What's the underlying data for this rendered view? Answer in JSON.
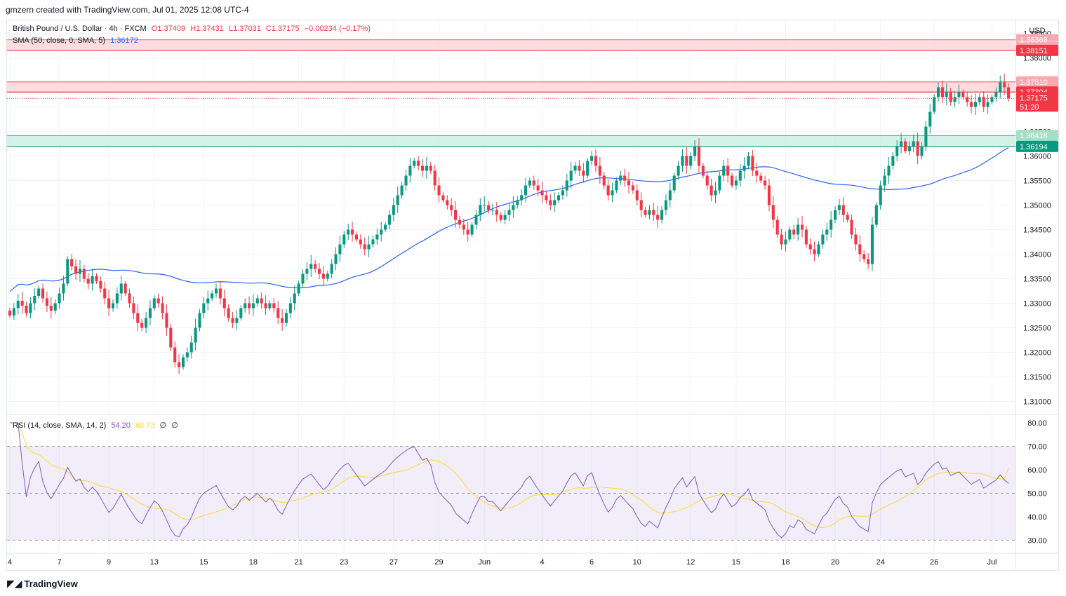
{
  "header": {
    "attribution": "gmzern created with TradingView.com, Jul 01, 2025 12:08 UTC-4",
    "currency": "USD"
  },
  "legend": {
    "symbol": "British Pound / U.S. Dollar · 4h · FXCM",
    "open": "O1.37409",
    "high": "H1.37431",
    "low": "L1.37031",
    "close": "C1.37175",
    "change": "−0.00234 (−0.17%)",
    "sma_label": "SMA (50, close, 0, SMA, 5)",
    "sma_value": "1.36172",
    "rsi_label": "RSI (14, close, SMA, 14, 2)",
    "rsi_value": "54.20",
    "rsi_ma_value": "60.73",
    "rsi_extra1": "∅",
    "rsi_extra2": "∅"
  },
  "footer": {
    "brand": "TradingView"
  },
  "colors": {
    "up": "#089981",
    "down": "#f23645",
    "sma": "#2962ff",
    "rsi": "#7e57c2",
    "rsi_ma": "#fdd835",
    "resistance_fill": "#fbd3d6",
    "support_fill": "#c9efe1"
  },
  "chart_data": [
    {
      "type": "candlestick",
      "title": "British Pound / U.S. Dollar · 4h · FXCM",
      "ylim": [
        1.3075,
        1.3875
      ],
      "y_ticks": [
        "1.31000",
        "1.31500",
        "1.32000",
        "1.32500",
        "1.33000",
        "1.33500",
        "1.34000",
        "1.34500",
        "1.35000",
        "1.35500",
        "1.36000",
        "1.36500",
        "1.37000",
        "1.37500",
        "1.38000",
        "1.38500"
      ],
      "x_ticks": [
        "4",
        "7",
        "9",
        "13",
        "15",
        "18",
        "21",
        "23",
        "27",
        "29",
        "Jun",
        "4",
        "6",
        "10",
        "12",
        "15",
        "18",
        "20",
        "24",
        "26",
        "Jul"
      ],
      "zones": [
        {
          "kind": "resistance",
          "low": 1.38151,
          "high": 1.38368
        },
        {
          "kind": "resistance",
          "low": 1.37304,
          "high": 1.3751
        },
        {
          "kind": "support",
          "low": 1.36194,
          "high": 1.36418
        }
      ],
      "price_labels": [
        {
          "text": "1.38368",
          "value": 1.38368,
          "color": "#f7a9b0"
        },
        {
          "text": "1.38151",
          "value": 1.38151,
          "color": "#f23645"
        },
        {
          "text": "1.37510",
          "value": 1.3751,
          "color": "#f7a9b0"
        },
        {
          "text": "1.37304",
          "value": 1.37304,
          "color": "#f23645"
        },
        {
          "text": "1.36418",
          "value": 1.36418,
          "color": "#a5dfc6"
        },
        {
          "text": "1.36194",
          "value": 1.36194,
          "color": "#089981"
        }
      ],
      "last_price": {
        "text": "1.37175",
        "countdown": "51:20",
        "value": 1.37175
      },
      "closes": [
        1.3275,
        1.329,
        1.3305,
        1.3295,
        1.328,
        1.33,
        1.3315,
        1.333,
        1.331,
        1.3295,
        1.3285,
        1.33,
        1.332,
        1.334,
        1.339,
        1.3375,
        1.336,
        1.337,
        1.335,
        1.334,
        1.3355,
        1.3345,
        1.333,
        1.331,
        1.329,
        1.33,
        1.332,
        1.334,
        1.332,
        1.33,
        1.328,
        1.326,
        1.325,
        1.327,
        1.329,
        1.331,
        1.33,
        1.328,
        1.325,
        1.321,
        1.318,
        1.317,
        1.319,
        1.32,
        1.322,
        1.325,
        1.328,
        1.33,
        1.331,
        1.332,
        1.333,
        1.331,
        1.329,
        1.327,
        1.326,
        1.327,
        1.329,
        1.33,
        1.329,
        1.33,
        1.331,
        1.33,
        1.329,
        1.33,
        1.329,
        1.327,
        1.326,
        1.328,
        1.33,
        1.332,
        1.334,
        1.336,
        1.337,
        1.338,
        1.337,
        1.336,
        1.335,
        1.336,
        1.338,
        1.34,
        1.342,
        1.344,
        1.345,
        1.344,
        1.343,
        1.342,
        1.341,
        1.342,
        1.343,
        1.344,
        1.345,
        1.346,
        1.348,
        1.35,
        1.352,
        1.354,
        1.356,
        1.358,
        1.359,
        1.358,
        1.357,
        1.358,
        1.357,
        1.354,
        1.352,
        1.351,
        1.35,
        1.349,
        1.347,
        1.346,
        1.345,
        1.344,
        1.346,
        1.348,
        1.35,
        1.35,
        1.349,
        1.349,
        1.348,
        1.347,
        1.348,
        1.349,
        1.35,
        1.351,
        1.352,
        1.354,
        1.355,
        1.354,
        1.353,
        1.352,
        1.351,
        1.35,
        1.351,
        1.352,
        1.353,
        1.355,
        1.357,
        1.358,
        1.357,
        1.356,
        1.359,
        1.36,
        1.358,
        1.356,
        1.354,
        1.352,
        1.353,
        1.355,
        1.356,
        1.355,
        1.354,
        1.353,
        1.351,
        1.349,
        1.348,
        1.349,
        1.348,
        1.347,
        1.349,
        1.351,
        1.353,
        1.356,
        1.358,
        1.36,
        1.358,
        1.36,
        1.362,
        1.358,
        1.356,
        1.354,
        1.352,
        1.353,
        1.356,
        1.358,
        1.356,
        1.354,
        1.355,
        1.357,
        1.358,
        1.36,
        1.357,
        1.356,
        1.355,
        1.354,
        1.35,
        1.347,
        1.344,
        1.342,
        1.343,
        1.345,
        1.344,
        1.346,
        1.345,
        1.342,
        1.341,
        1.34,
        1.342,
        1.344,
        1.345,
        1.347,
        1.349,
        1.35,
        1.348,
        1.347,
        1.344,
        1.342,
        1.34,
        1.339,
        1.338,
        1.346,
        1.35,
        1.354,
        1.356,
        1.358,
        1.36,
        1.362,
        1.363,
        1.361,
        1.362,
        1.363,
        1.36,
        1.362,
        1.366,
        1.369,
        1.372,
        1.374,
        1.372,
        1.373,
        1.371,
        1.372,
        1.373,
        1.372,
        1.371,
        1.37,
        1.371,
        1.372,
        1.37,
        1.371,
        1.372,
        1.373,
        1.375,
        1.374,
        1.37175
      ],
      "sma_50_visible_range": [
        1.3324,
        1.3648
      ],
      "sma_last": 1.36172
    },
    {
      "type": "line",
      "title": "RSI (14, close, SMA, 14, 2)",
      "ylim": [
        25,
        83
      ],
      "y_ticks": [
        "30.00",
        "40.00",
        "50.00",
        "60.00",
        "70.00",
        "80.00"
      ],
      "band": [
        30,
        70
      ],
      "midline": 50,
      "rsi_last": 54.2,
      "rsi_ma_last": 60.73,
      "rsi_range": [
        31,
        80
      ],
      "rsi_ma_range": [
        36,
        71
      ]
    }
  ]
}
